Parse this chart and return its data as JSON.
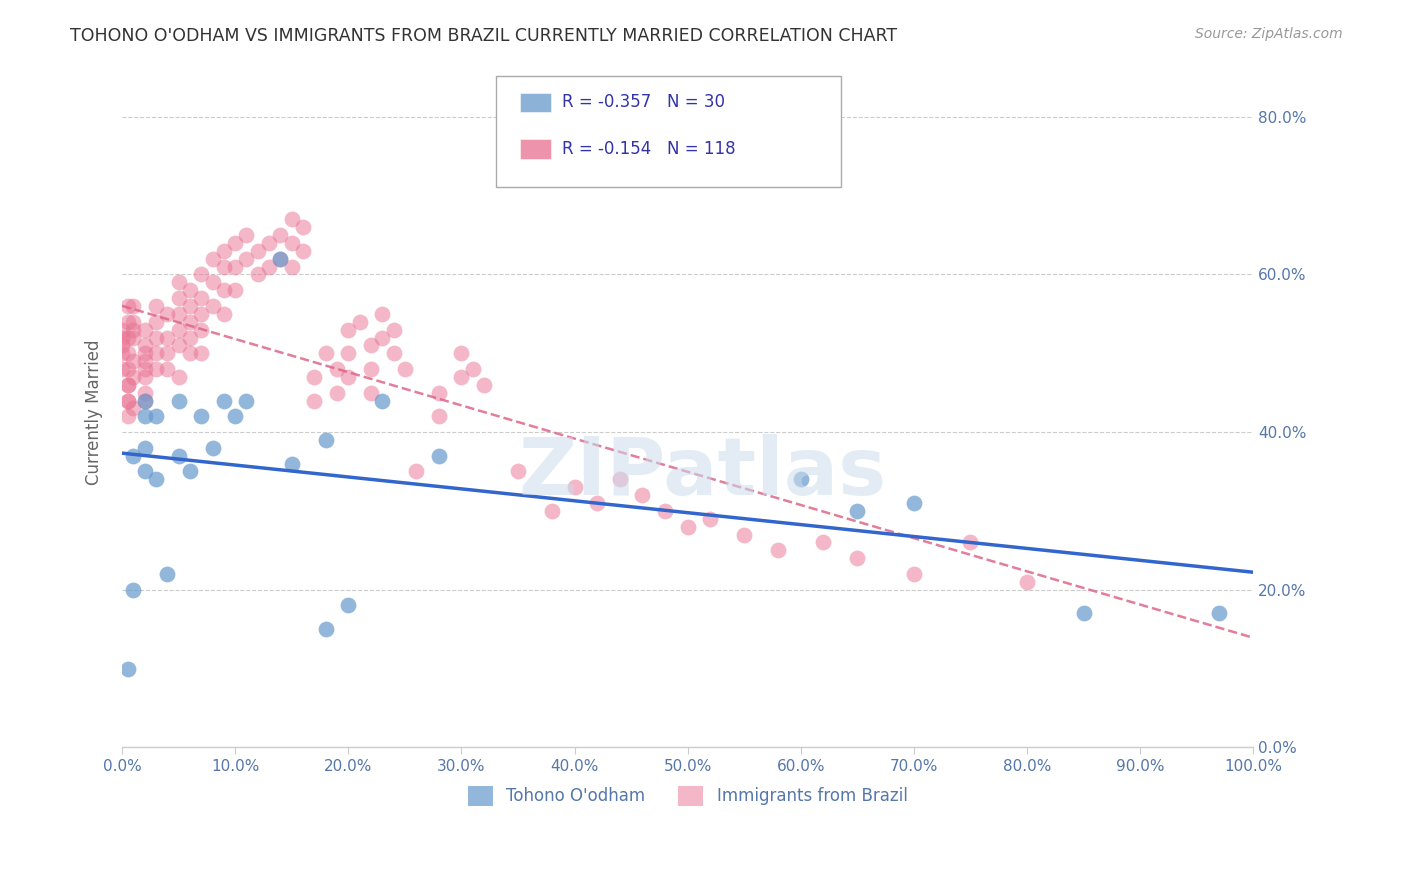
{
  "title": "TOHONO O'ODHAM VS IMMIGRANTS FROM BRAZIL CURRENTLY MARRIED CORRELATION CHART",
  "source": "Source: ZipAtlas.com",
  "ylabel": "Currently Married",
  "xaxis_ticks": [
    0.0,
    0.1,
    0.2,
    0.3,
    0.4,
    0.5,
    0.6,
    0.7,
    0.8,
    0.9,
    1.0
  ],
  "yaxis_ticks": [
    0.0,
    0.2,
    0.4,
    0.6,
    0.8
  ],
  "xlim": [
    0.0,
    1.0
  ],
  "ylim": [
    0.0,
    0.85
  ],
  "series1_label": "Tohono O'odham",
  "series1_color": "#6699cc",
  "series1_R": "-0.357",
  "series1_N": "30",
  "series1_x": [
    0.005,
    0.01,
    0.01,
    0.02,
    0.02,
    0.02,
    0.02,
    0.03,
    0.03,
    0.04,
    0.05,
    0.05,
    0.06,
    0.07,
    0.08,
    0.09,
    0.1,
    0.11,
    0.14,
    0.15,
    0.18,
    0.18,
    0.2,
    0.23,
    0.28,
    0.6,
    0.65,
    0.7,
    0.85,
    0.97
  ],
  "series1_y": [
    0.1,
    0.2,
    0.37,
    0.35,
    0.38,
    0.44,
    0.42,
    0.34,
    0.42,
    0.22,
    0.37,
    0.44,
    0.35,
    0.42,
    0.38,
    0.44,
    0.42,
    0.44,
    0.62,
    0.36,
    0.39,
    0.15,
    0.18,
    0.44,
    0.37,
    0.34,
    0.3,
    0.31,
    0.17,
    0.17
  ],
  "series2_label": "Immigrants from Brazil",
  "series2_color": "#e87090",
  "series2_R": "-0.154",
  "series2_N": "118",
  "series2_x": [
    0.0,
    0.0,
    0.0,
    0.0,
    0.0,
    0.005,
    0.005,
    0.005,
    0.005,
    0.005,
    0.005,
    0.005,
    0.005,
    0.005,
    0.005,
    0.01,
    0.01,
    0.01,
    0.01,
    0.01,
    0.01,
    0.01,
    0.02,
    0.02,
    0.02,
    0.02,
    0.02,
    0.02,
    0.02,
    0.02,
    0.03,
    0.03,
    0.03,
    0.03,
    0.03,
    0.04,
    0.04,
    0.04,
    0.04,
    0.05,
    0.05,
    0.05,
    0.05,
    0.05,
    0.05,
    0.06,
    0.06,
    0.06,
    0.06,
    0.06,
    0.07,
    0.07,
    0.07,
    0.07,
    0.07,
    0.08,
    0.08,
    0.08,
    0.09,
    0.09,
    0.09,
    0.09,
    0.1,
    0.1,
    0.1,
    0.11,
    0.11,
    0.12,
    0.12,
    0.13,
    0.13,
    0.14,
    0.14,
    0.15,
    0.15,
    0.15,
    0.16,
    0.16,
    0.17,
    0.17,
    0.18,
    0.19,
    0.19,
    0.2,
    0.2,
    0.2,
    0.21,
    0.22,
    0.22,
    0.22,
    0.23,
    0.23,
    0.24,
    0.24,
    0.25,
    0.26,
    0.28,
    0.28,
    0.3,
    0.3,
    0.31,
    0.32,
    0.35,
    0.38,
    0.4,
    0.42,
    0.44,
    0.46,
    0.48,
    0.5,
    0.52,
    0.55,
    0.58,
    0.62,
    0.65,
    0.7,
    0.75,
    0.8,
    0.12,
    0.13
  ],
  "series2_y": [
    0.48,
    0.5,
    0.51,
    0.52,
    0.53,
    0.46,
    0.44,
    0.42,
    0.52,
    0.54,
    0.56,
    0.5,
    0.46,
    0.44,
    0.48,
    0.47,
    0.53,
    0.49,
    0.43,
    0.56,
    0.54,
    0.52,
    0.5,
    0.48,
    0.45,
    0.47,
    0.51,
    0.53,
    0.49,
    0.44,
    0.56,
    0.54,
    0.52,
    0.48,
    0.5,
    0.55,
    0.52,
    0.5,
    0.48,
    0.57,
    0.59,
    0.55,
    0.53,
    0.51,
    0.47,
    0.56,
    0.58,
    0.54,
    0.52,
    0.5,
    0.6,
    0.57,
    0.55,
    0.53,
    0.5,
    0.62,
    0.59,
    0.56,
    0.63,
    0.61,
    0.58,
    0.55,
    0.64,
    0.61,
    0.58,
    0.65,
    0.62,
    0.63,
    0.6,
    0.64,
    0.61,
    0.65,
    0.62,
    0.67,
    0.64,
    0.61,
    0.66,
    0.63,
    0.47,
    0.44,
    0.5,
    0.48,
    0.45,
    0.53,
    0.5,
    0.47,
    0.54,
    0.51,
    0.48,
    0.45,
    0.55,
    0.52,
    0.53,
    0.5,
    0.48,
    0.35,
    0.45,
    0.42,
    0.5,
    0.47,
    0.48,
    0.46,
    0.35,
    0.3,
    0.33,
    0.31,
    0.34,
    0.32,
    0.3,
    0.28,
    0.29,
    0.27,
    0.25,
    0.26,
    0.24,
    0.22,
    0.26,
    0.21
  ],
  "line1_color": "#3366cc",
  "line2_color": "#dd6688",
  "bg_color": "#ffffff",
  "grid_color": "#cccccc",
  "tick_color": "#5577aa",
  "title_color": "#333333",
  "source_color": "#999999"
}
